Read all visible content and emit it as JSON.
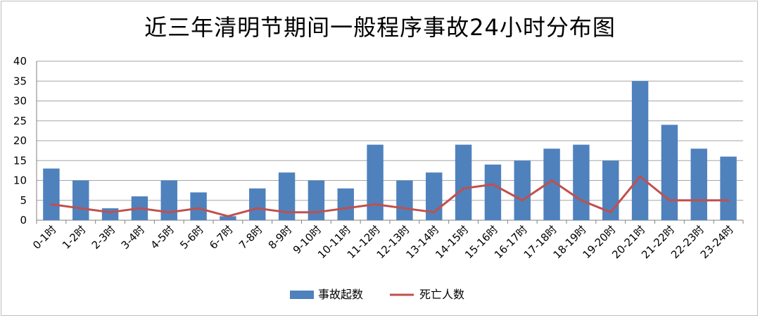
{
  "chart_data": {
    "type": "bar",
    "title": "近三年清明节期间一般程序事故24小时分布图",
    "categories": [
      "0-1时",
      "1-2时",
      "2-3时",
      "3-4时",
      "4-5时",
      "5-6时",
      "6-7时",
      "7-8时",
      "8-9时",
      "9-10时",
      "10-11时",
      "11-12时",
      "12-13时",
      "13-14时",
      "14-15时",
      "15-16时",
      "16-17时",
      "17-18时",
      "18-19时",
      "19-20时",
      "20-21时",
      "21-22时",
      "22-23时",
      "23-24时"
    ],
    "series": [
      {
        "name": "事故起数",
        "type": "bar",
        "color": "#4F81BD",
        "values": [
          13,
          10,
          3,
          6,
          10,
          7,
          1,
          8,
          12,
          10,
          8,
          19,
          10,
          12,
          19,
          14,
          15,
          18,
          19,
          15,
          35,
          24,
          18,
          16
        ]
      },
      {
        "name": "死亡人数",
        "type": "line",
        "color": "#C0504D",
        "values": [
          4,
          3,
          2,
          3,
          2,
          3,
          1,
          3,
          2,
          2,
          3,
          4,
          3,
          2,
          8,
          9,
          5,
          10,
          5,
          2,
          11,
          5,
          5,
          5
        ]
      }
    ],
    "ylim": [
      0,
      40
    ],
    "yticks": [
      0,
      5,
      10,
      15,
      20,
      25,
      30,
      35,
      40
    ],
    "grid": true,
    "legend_position": "bottom"
  }
}
